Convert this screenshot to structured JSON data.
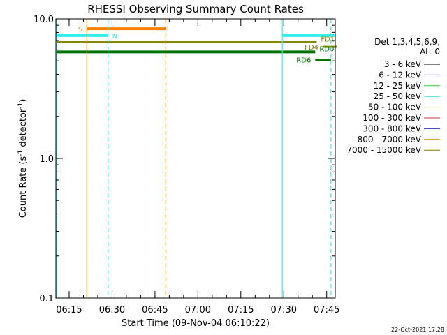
{
  "chart_data": {
    "type": "line",
    "title": "RHESSI Observing Summary Count Rates",
    "xlabel": "Start Time (09-Nov-04 06:10:22)",
    "ylabel_main": "Count Rate (s",
    "ylabel_sup1": "-1",
    "ylabel_mid": " detector",
    "ylabel_sup2": "-1",
    "ylabel_end": ")",
    "y_scale": "log",
    "xlim": [
      "06:10:22",
      "07:48:00"
    ],
    "ylim": [
      0.1,
      10.0
    ],
    "x_ticks": [
      "06:15",
      "06:30",
      "06:45",
      "07:00",
      "07:15",
      "07:30",
      "07:45"
    ],
    "x_tick_minutes": [
      15,
      30,
      45,
      60,
      75,
      90,
      105
    ],
    "y_ticks": [
      {
        "label": "10.0",
        "value": 10
      },
      {
        "label": "1.0",
        "value": 1
      },
      {
        "label": "0.1",
        "value": 0.1
      }
    ],
    "legend": {
      "position": "right",
      "header1": "Det 1,3,4,5,6,9,",
      "header2": "Att 0",
      "entries": [
        {
          "label": "3 - 6 keV",
          "color": "#000000"
        },
        {
          "label": "6 - 12 keV",
          "color": "#cc33cc"
        },
        {
          "label": "12 - 25 keV",
          "color": "#33cc33"
        },
        {
          "label": "25 - 50 keV",
          "color": "#33dddd"
        },
        {
          "label": "50 - 100 keV",
          "color": "#dddd33"
        },
        {
          "label": "100 - 300 keV",
          "color": "#cc3333"
        },
        {
          "label": "300 - 800 keV",
          "color": "#3333cc"
        },
        {
          "label": "800 - 7000 keV",
          "color": "#dd8800"
        },
        {
          "label": "7000 - 15000 keV",
          "color": "#887700"
        }
      ]
    },
    "flag_bars": [
      {
        "label": "S",
        "start_min": 21.2,
        "end_min": 48.8,
        "value": 8.5,
        "color": "#ff8000",
        "width": 4,
        "label_side": "left"
      },
      {
        "label": "N",
        "start_min": 10.37,
        "end_min": 28.6,
        "value": 7.6,
        "color": "#33eeee",
        "width": 4,
        "label_side": "right"
      },
      {
        "label": "",
        "start_min": 89.5,
        "end_min": 108.0,
        "value": 7.6,
        "color": "#33eeee",
        "width": 4,
        "label_side": "none"
      },
      {
        "label": "FD1",
        "start_min": 10.37,
        "end_min": 101.5,
        "value": 6.8,
        "color": "#888800",
        "width": 3,
        "label_side": "above-right"
      },
      {
        "label": "FD4",
        "start_min": 103.6,
        "end_min": 108.5,
        "value": 6.3,
        "color": "#888800",
        "width": 3,
        "label_side": "left"
      },
      {
        "label": "RD0",
        "start_min": 10.37,
        "end_min": 101.0,
        "value": 5.8,
        "color": "#007700",
        "width": 4,
        "label_side": "above-right"
      },
      {
        "label": "RD6",
        "start_min": 101.0,
        "end_min": 106.5,
        "value": 5.1,
        "color": "#007700",
        "width": 3,
        "label_side": "left"
      }
    ],
    "vertical_lines": [
      {
        "minute": 10.55,
        "color": "#33eeee",
        "dashed": false
      },
      {
        "minute": 21.2,
        "color": "#dd8800",
        "dashed": false
      },
      {
        "minute": 28.6,
        "color": "#33eeee",
        "dashed": true
      },
      {
        "minute": 48.8,
        "color": "#ff8000",
        "dashed": true
      },
      {
        "minute": 89.5,
        "color": "#33eeee",
        "dashed": false
      },
      {
        "minute": 106.5,
        "color": "#33eeee",
        "dashed": true
      }
    ]
  },
  "timestamp": "22-Oct-2021 17:28"
}
